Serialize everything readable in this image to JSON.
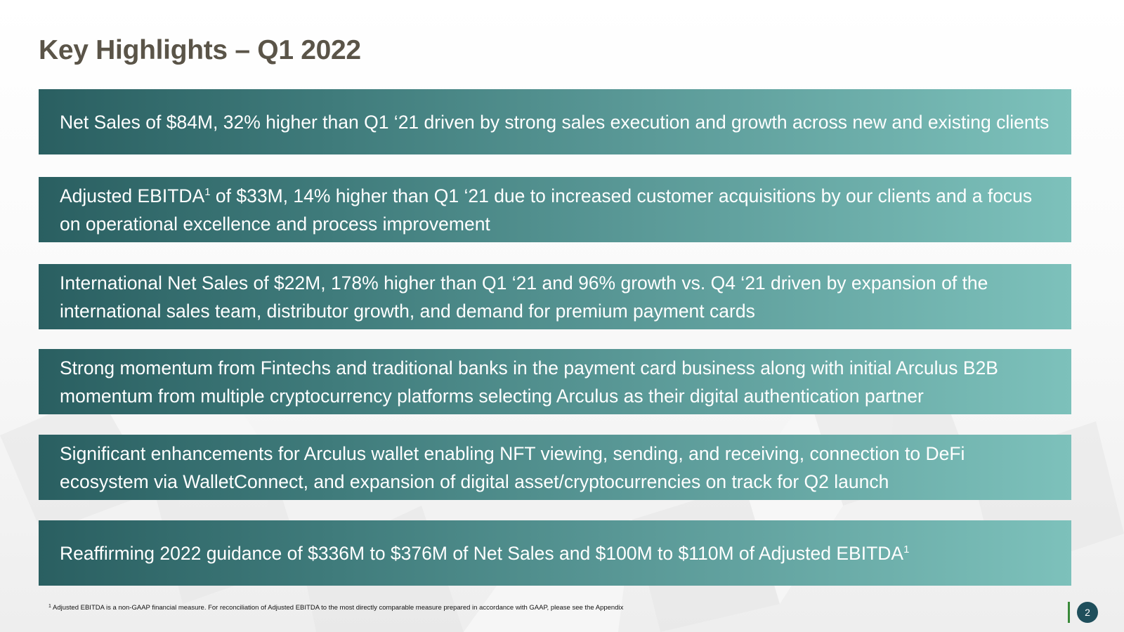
{
  "slide": {
    "title": "Key Highlights – Q1 2022",
    "page_number": "2"
  },
  "highlights": [
    {
      "text_before": "Net Sales of $84M, 32% higher than Q1 ‘21 driven by strong sales execution and growth across new and existing clients",
      "superscript": "",
      "text_after": ""
    },
    {
      "text_before": "Adjusted EBITDA",
      "superscript": "1",
      "text_after": " of $33M, 14% higher than Q1 ‘21 due to increased customer acquisitions by our clients and a focus on operational excellence and process improvement"
    },
    {
      "text_before": "International Net Sales of $22M, 178% higher than Q1 ‘21 and 96% growth vs. Q4 ‘21 driven by expansion of the international sales team, distributor growth, and demand for premium payment cards",
      "superscript": "",
      "text_after": ""
    },
    {
      "text_before": "Strong momentum from Fintechs and traditional banks in the payment card business along with initial Arculus B2B momentum from multiple cryptocurrency platforms selecting Arculus as their digital authentication partner",
      "superscript": "",
      "text_after": ""
    },
    {
      "text_before": "Significant enhancements for Arculus wallet enabling NFT viewing, sending, and receiving, connection to DeFi ecosystem via WalletConnect, and expansion of digital asset/cryptocurrencies on track for Q2 launch",
      "superscript": "",
      "text_after": ""
    },
    {
      "text_before": "Reaffirming 2022 guidance of $336M to $376M of Net Sales and $100M to $110M of Adjusted EBITDA",
      "superscript": "1",
      "text_after": ""
    }
  ],
  "footnote": {
    "marker": "1",
    "text": " Adjusted EBITDA is a non-GAAP financial measure.  For reconciliation of Adjusted EBITDA to the most directly comparable measure prepared in accordance with GAAP, please see the Appendix"
  },
  "colors": {
    "title": "#5a5448",
    "box_gradient_start": "#2a5f61",
    "box_gradient_end": "#7dc1bb",
    "page_badge": "#1f4f5c",
    "divider": "#3a8a3a"
  }
}
